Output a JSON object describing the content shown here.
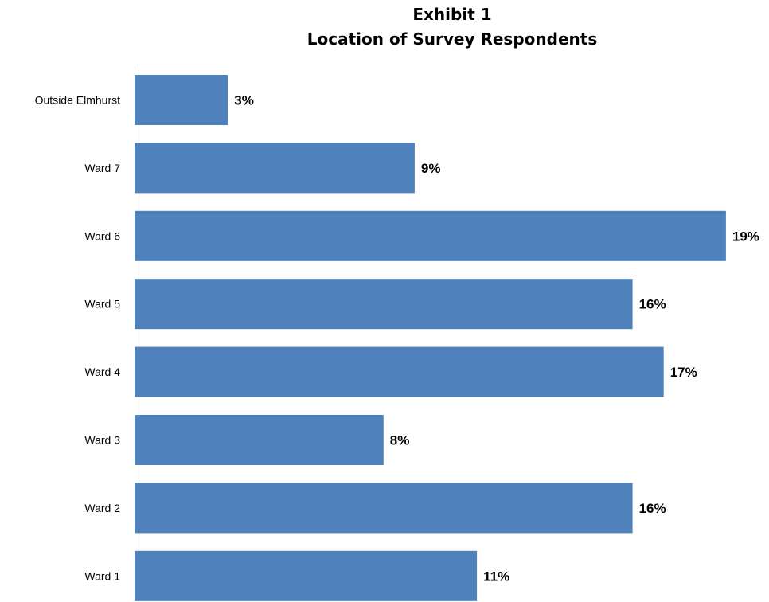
{
  "chart_data": {
    "type": "bar",
    "orientation": "horizontal",
    "title": "Exhibit 1",
    "subtitle": "Location of Survey Respondents",
    "xlabel": "",
    "ylabel": "",
    "categories": [
      "Outside Elmhurst",
      "Ward 7",
      "Ward 6",
      "Ward 5",
      "Ward 4",
      "Ward 3",
      "Ward 2",
      "Ward 1"
    ],
    "values": [
      3,
      9,
      19,
      16,
      17,
      8,
      16,
      11
    ],
    "data_labels": [
      "3%",
      "9%",
      "19%",
      "16%",
      "17%",
      "8%",
      "16%",
      "11%"
    ],
    "value_unit": "%",
    "grid": false,
    "legend": "none",
    "bar_color": "#4f81bd",
    "axis_color": "#d9d9d9"
  }
}
